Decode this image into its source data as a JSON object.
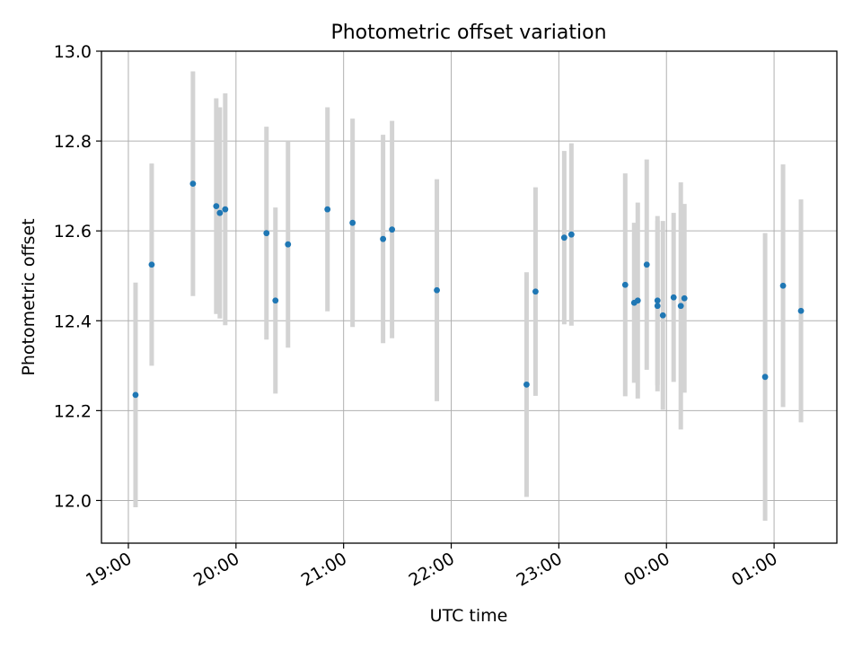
{
  "chart_data": {
    "type": "scatter",
    "title": "Photometric offset variation",
    "xlabel": "UTC time",
    "ylabel": "Photometric offset",
    "x_ticks": [
      "19:00",
      "20:00",
      "21:00",
      "22:00",
      "23:00",
      "00:00",
      "01:00"
    ],
    "y_ticks": [
      "12.0",
      "12.2",
      "12.4",
      "12.6",
      "12.8",
      "13.0"
    ],
    "xlim": [
      "18:45",
      "01:35"
    ],
    "ylim": [
      11.905,
      13.0
    ],
    "grid": true,
    "point_color": "#1f77b4",
    "errorbar_color": "#d3d3d3",
    "points": [
      {
        "t": "19:04",
        "y": 12.235,
        "err": 0.25
      },
      {
        "t": "19:13",
        "y": 12.525,
        "err": 0.225
      },
      {
        "t": "19:36",
        "y": 12.705,
        "err": 0.25
      },
      {
        "t": "19:49",
        "y": 12.655,
        "err": 0.24
      },
      {
        "t": "19:51",
        "y": 12.64,
        "err": 0.235
      },
      {
        "t": "19:54",
        "y": 12.648,
        "err": 0.258
      },
      {
        "t": "20:17",
        "y": 12.595,
        "err": 0.237
      },
      {
        "t": "20:22",
        "y": 12.445,
        "err": 0.207
      },
      {
        "t": "20:29",
        "y": 12.57,
        "err": 0.23
      },
      {
        "t": "20:51",
        "y": 12.648,
        "err": 0.227
      },
      {
        "t": "21:05",
        "y": 12.618,
        "err": 0.232
      },
      {
        "t": "21:22",
        "y": 12.582,
        "err": 0.232
      },
      {
        "t": "21:27",
        "y": 12.603,
        "err": 0.242
      },
      {
        "t": "21:52",
        "y": 12.468,
        "err": 0.247
      },
      {
        "t": "22:42",
        "y": 12.258,
        "err": 0.25
      },
      {
        "t": "22:47",
        "y": 12.465,
        "err": 0.232
      },
      {
        "t": "23:03",
        "y": 12.585,
        "err": 0.193
      },
      {
        "t": "23:07",
        "y": 12.592,
        "err": 0.203
      },
      {
        "t": "23:37",
        "y": 12.48,
        "err": 0.248
      },
      {
        "t": "23:42",
        "y": 12.44,
        "err": 0.178
      },
      {
        "t": "23:44",
        "y": 12.445,
        "err": 0.218
      },
      {
        "t": "23:49",
        "y": 12.525,
        "err": 0.234
      },
      {
        "t": "23:55",
        "y": 12.445,
        "err": 0.188
      },
      {
        "t": "23:55",
        "y": 12.433,
        "err": 0.19
      },
      {
        "t": "23:58",
        "y": 12.412,
        "err": 0.21
      },
      {
        "t": "00:04",
        "y": 12.452,
        "err": 0.188
      },
      {
        "t": "00:08",
        "y": 12.433,
        "err": 0.275
      },
      {
        "t": "00:10",
        "y": 12.45,
        "err": 0.21
      },
      {
        "t": "00:55",
        "y": 12.275,
        "err": 0.32
      },
      {
        "t": "01:05",
        "y": 12.478,
        "err": 0.27
      },
      {
        "t": "01:15",
        "y": 12.422,
        "err": 0.248
      }
    ]
  }
}
